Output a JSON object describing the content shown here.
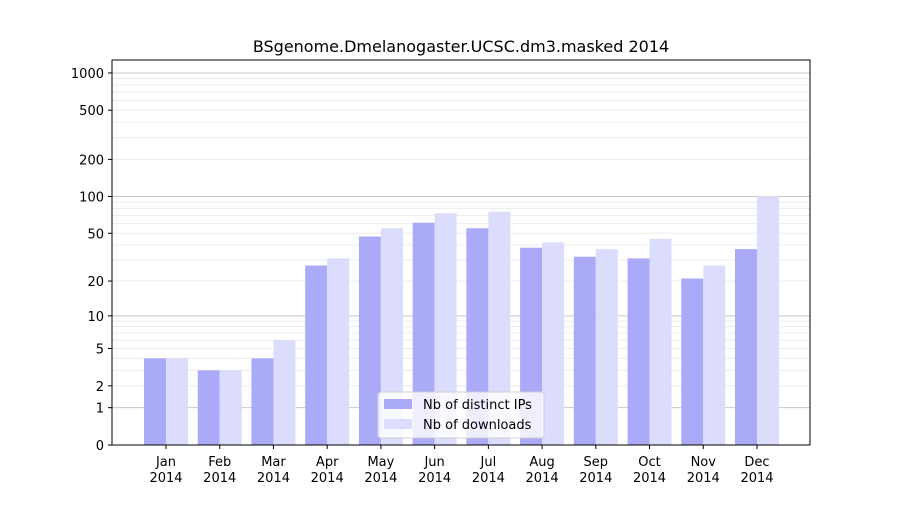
{
  "chart_data": {
    "type": "bar",
    "title": "BSgenome.Dmelanogaster.UCSC.dm3.masked 2014",
    "xlabel": "",
    "ylabel": "",
    "yscale": "symlog",
    "ylim": [
      0,
      1200
    ],
    "yticks": [
      0,
      1,
      2,
      5,
      10,
      20,
      50,
      100,
      200,
      500,
      1000
    ],
    "grid": true,
    "legend_position": "bottom-center",
    "categories": [
      [
        "Jan",
        "2014"
      ],
      [
        "Feb",
        "2014"
      ],
      [
        "Mar",
        "2014"
      ],
      [
        "Apr",
        "2014"
      ],
      [
        "May",
        "2014"
      ],
      [
        "Jun",
        "2014"
      ],
      [
        "Jul",
        "2014"
      ],
      [
        "Aug",
        "2014"
      ],
      [
        "Sep",
        "2014"
      ],
      [
        "Oct",
        "2014"
      ],
      [
        "Nov",
        "2014"
      ],
      [
        "Dec",
        "2014"
      ]
    ],
    "series": [
      {
        "name": "Nb of distinct IPs",
        "color": "#aaaaf8",
        "values": [
          4,
          3,
          4,
          27,
          47,
          61,
          55,
          38,
          32,
          31,
          21,
          37
        ]
      },
      {
        "name": "Nb of downloads",
        "color": "#dcdcfc",
        "values": [
          4,
          3,
          6,
          31,
          55,
          73,
          75,
          42,
          37,
          45,
          27,
          101
        ]
      }
    ]
  }
}
